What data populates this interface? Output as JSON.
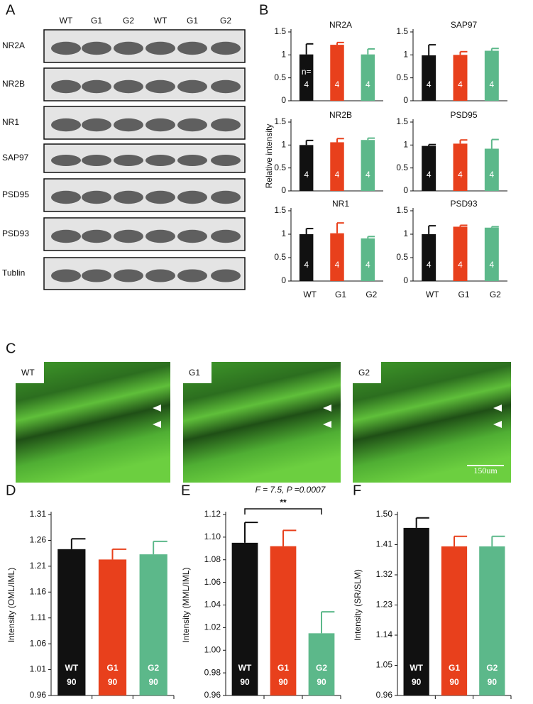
{
  "panel_labels": [
    "A",
    "B",
    "C",
    "D",
    "E",
    "F"
  ],
  "blot": {
    "lanes": [
      "WT",
      "G1",
      "G2",
      "WT",
      "G1",
      "G2"
    ],
    "proteins": [
      "NR2A",
      "NR2B",
      "NR1",
      "SAP97",
      "PSD95",
      "PSD93",
      "Tublin"
    ]
  },
  "panel_b": {
    "ylabel": "Relative intensity"
  },
  "images": {
    "labels": [
      "WT",
      "G1",
      "G2"
    ],
    "scale_bar": "150um"
  },
  "chart_data": [
    {
      "type": "bar",
      "title": "NR2A",
      "categories": [
        null,
        null,
        null
      ],
      "values": [
        1.01,
        1.22,
        1.01
      ],
      "errors": [
        0.23,
        0.05,
        0.12
      ],
      "value_labels": [
        "4",
        "4",
        "4"
      ],
      "n_label": "n=",
      "colors": [
        "#111111",
        "#e8401c",
        "#5cb88a"
      ],
      "ylim": [
        0,
        1.5
      ],
      "yticks": [
        0,
        0.5,
        1,
        1.5
      ]
    },
    {
      "type": "bar",
      "title": "SAP97",
      "categories": [
        null,
        null,
        null
      ],
      "values": [
        0.99,
        1.0,
        1.09
      ],
      "errors": [
        0.23,
        0.07,
        0.05
      ],
      "value_labels": [
        "4",
        "4",
        "4"
      ],
      "colors": [
        "#111111",
        "#e8401c",
        "#5cb88a"
      ],
      "ylim": [
        0,
        1.5
      ],
      "yticks": [
        0,
        0.5,
        1,
        1.5
      ]
    },
    {
      "type": "bar",
      "title": "NR2B",
      "categories": [
        null,
        null,
        null
      ],
      "values": [
        1.0,
        1.06,
        1.11
      ],
      "errors": [
        0.1,
        0.08,
        0.04
      ],
      "value_labels": [
        "4",
        "4",
        "4"
      ],
      "colors": [
        "#111111",
        "#e8401c",
        "#5cb88a"
      ],
      "ylim": [
        0,
        1.5
      ],
      "yticks": [
        0,
        0.5,
        1,
        1.5
      ]
    },
    {
      "type": "bar",
      "title": "PSD95",
      "categories": [
        null,
        null,
        null
      ],
      "values": [
        0.98,
        1.03,
        0.92
      ],
      "errors": [
        0.03,
        0.08,
        0.2
      ],
      "value_labels": [
        "4",
        "4",
        "4"
      ],
      "colors": [
        "#111111",
        "#e8401c",
        "#5cb88a"
      ],
      "ylim": [
        0,
        1.5
      ],
      "yticks": [
        0,
        0.5,
        1,
        1.5
      ]
    },
    {
      "type": "bar",
      "title": "NR1",
      "categories": [
        "WT",
        "G1",
        "G2"
      ],
      "values": [
        1.0,
        1.02,
        0.91
      ],
      "errors": [
        0.12,
        0.22,
        0.04
      ],
      "value_labels": [
        "4",
        "4",
        "4"
      ],
      "colors": [
        "#111111",
        "#e8401c",
        "#5cb88a"
      ],
      "ylim": [
        0,
        1.5
      ],
      "yticks": [
        0,
        0.5,
        1,
        1.5
      ]
    },
    {
      "type": "bar",
      "title": "PSD93",
      "categories": [
        "WT",
        "G1",
        "G2"
      ],
      "values": [
        1.0,
        1.16,
        1.14
      ],
      "errors": [
        0.18,
        0.03,
        0.02
      ],
      "value_labels": [
        "4",
        "4",
        "4"
      ],
      "colors": [
        "#111111",
        "#e8401c",
        "#5cb88a"
      ],
      "ylim": [
        0,
        1.5
      ],
      "yticks": [
        0,
        0.5,
        1,
        1.5
      ]
    },
    {
      "type": "bar",
      "ylabel": "Intensity (OML/IML)",
      "categories": [
        "WT",
        "G1",
        "G2"
      ],
      "values": [
        1.243,
        1.223,
        1.233
      ],
      "errors": [
        0.02,
        0.02,
        0.025
      ],
      "value_labels": [
        "90",
        "90",
        "90"
      ],
      "colors": [
        "#111111",
        "#e8401c",
        "#5cb88a"
      ],
      "ylim": [
        0.96,
        1.31
      ],
      "yticks": [
        0.96,
        1.01,
        1.06,
        1.11,
        1.16,
        1.21,
        1.26,
        1.31
      ]
    },
    {
      "type": "bar",
      "ylabel": "Intensity (MML/IML)",
      "annotation": "F = 7.5, P =0.0007",
      "significance": "**",
      "categories": [
        "WT",
        "G1",
        "G2"
      ],
      "values": [
        1.095,
        1.092,
        1.015
      ],
      "errors": [
        0.018,
        0.014,
        0.019
      ],
      "value_labels": [
        "90",
        "90",
        "90"
      ],
      "colors": [
        "#111111",
        "#e8401c",
        "#5cb88a"
      ],
      "ylim": [
        0.96,
        1.12
      ],
      "yticks": [
        0.96,
        0.98,
        {
          "value": 1,
          "label": "1.00"
        },
        1.02,
        1.04,
        1.06,
        1.08,
        {
          "value": 1.1,
          "label": "1.10"
        },
        1.12
      ]
    },
    {
      "type": "bar",
      "ylabel": "Intensity (SR/SLM)",
      "categories": [
        "WT",
        "G1",
        "G2"
      ],
      "values": [
        1.46,
        1.405,
        1.405
      ],
      "errors": [
        0.03,
        0.03,
        0.03
      ],
      "value_labels": [
        "90",
        "90",
        "90"
      ],
      "colors": [
        "#111111",
        "#e8401c",
        "#5cb88a"
      ],
      "ylim": [
        0.96,
        1.5
      ],
      "yticks": [
        0.96,
        1.05,
        1.14,
        1.23,
        1.32,
        1.41,
        {
          "value": 1.5,
          "label": "1.50"
        }
      ]
    }
  ]
}
